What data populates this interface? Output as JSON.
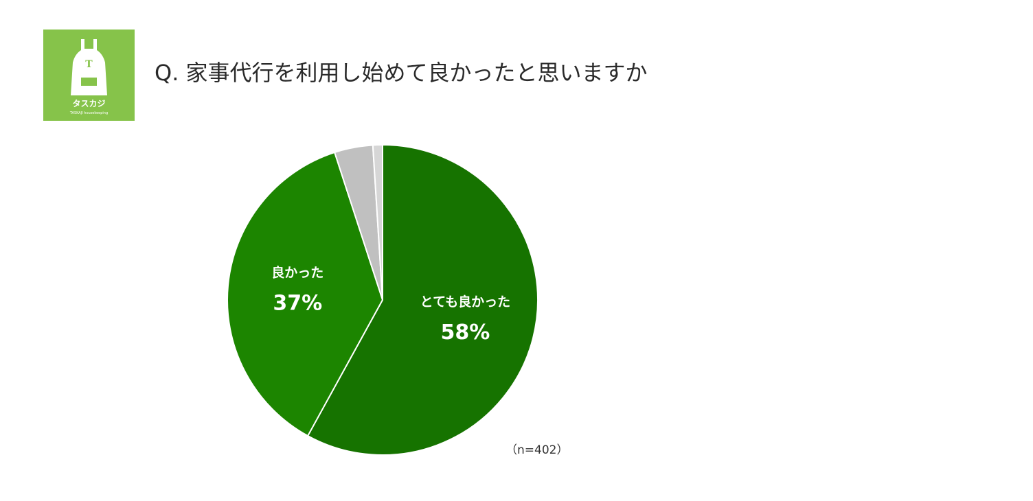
{
  "header": {
    "title": "Q. 家事代行を利用し始めて良かったと思いますか",
    "logo_text": "タスカジ",
    "logo_subtext": "TASKAJI housekeeping",
    "logo_letter": "T",
    "logo_color": "#86c34a"
  },
  "chart_data": {
    "type": "pie",
    "title": "Q. 家事代行を利用し始めて良かったと思いますか",
    "start_angle_deg": 0,
    "direction": "clockwise",
    "slices": [
      {
        "label": "とても良かった",
        "value": 58,
        "display": "58%",
        "color": "#167300",
        "show_label": true
      },
      {
        "label": "良かった",
        "value": 37,
        "display": "37%",
        "color": "#1c8500",
        "show_label": true
      },
      {
        "label": "",
        "value": 4,
        "display": "",
        "color": "#c0c0c0",
        "show_label": false
      },
      {
        "label": "",
        "value": 1,
        "display": "",
        "color": "#d6d6d6",
        "show_label": false
      }
    ],
    "note": "（n=402）"
  }
}
